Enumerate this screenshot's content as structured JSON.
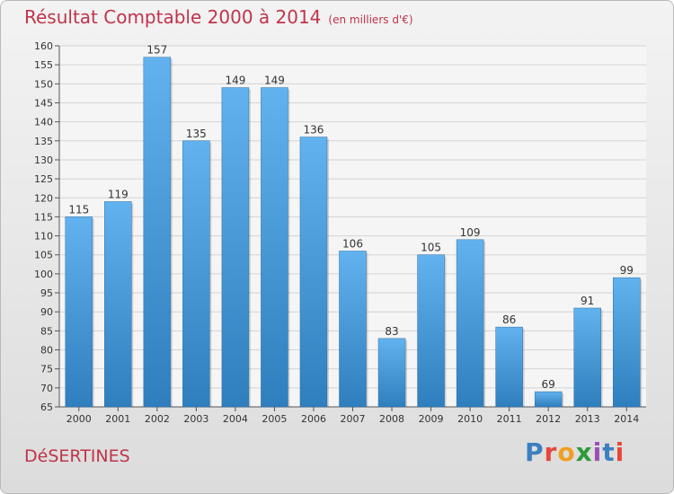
{
  "title": "Résultat Comptable 2000 à 2014",
  "unit": "(en milliers d'€)",
  "commune": "DéSERTINES",
  "logo": {
    "letters": [
      "P",
      "r",
      "o",
      "x",
      "i",
      "t",
      "i"
    ],
    "colors": [
      "#3c7fc0",
      "#e8463b",
      "#f0a020",
      "#2f9a3a",
      "#9b4fb5",
      "#3c7fc0",
      "#e8463b"
    ]
  },
  "colors": {
    "bar_top": "#62b2ef",
    "bar_bottom": "#2f7ebd",
    "title": "#c0344a"
  },
  "chart_data": {
    "type": "bar",
    "categories": [
      "2000",
      "2001",
      "2002",
      "2003",
      "2004",
      "2005",
      "2006",
      "2007",
      "2008",
      "2009",
      "2010",
      "2011",
      "2012",
      "2013",
      "2014"
    ],
    "values": [
      115,
      119,
      157,
      135,
      149,
      149,
      136,
      106,
      83,
      105,
      109,
      86,
      69,
      91,
      99
    ],
    "ylim": [
      65,
      160
    ],
    "yticks": [
      65,
      70,
      75,
      80,
      85,
      90,
      95,
      100,
      105,
      110,
      115,
      120,
      125,
      130,
      135,
      140,
      145,
      150,
      155,
      160
    ],
    "grid": true
  }
}
